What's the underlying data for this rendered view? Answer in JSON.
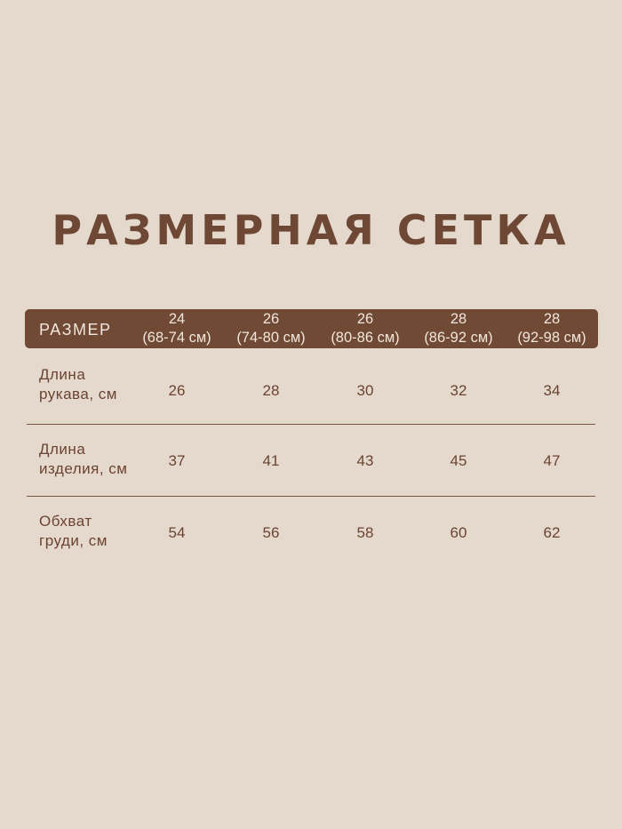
{
  "title": "РАЗМЕРНАЯ СЕТКА",
  "header": {
    "label": "РАЗМЕР",
    "sizes": [
      {
        "size": "24",
        "range": "(68-74 см)"
      },
      {
        "size": "26",
        "range": "(74-80 см)"
      },
      {
        "size": "26",
        "range": "(80-86 см)"
      },
      {
        "size": "28",
        "range": "(86-92 см)"
      },
      {
        "size": "28",
        "range": "(92-98 см)"
      }
    ]
  },
  "rows": [
    {
      "l1": "Длина",
      "l2": "рукава, см",
      "values": [
        "26",
        "28",
        "30",
        "32",
        "34"
      ]
    },
    {
      "l1": "Длина",
      "l2": "изделия, см",
      "values": [
        "37",
        "41",
        "43",
        "45",
        "47"
      ]
    },
    {
      "l1": "Обхват",
      "l2": "груди, см",
      "values": [
        "54",
        "56",
        "58",
        "60",
        "62"
      ]
    }
  ],
  "colors": {
    "background": "#e5d9ce",
    "accent": "#704a35"
  }
}
